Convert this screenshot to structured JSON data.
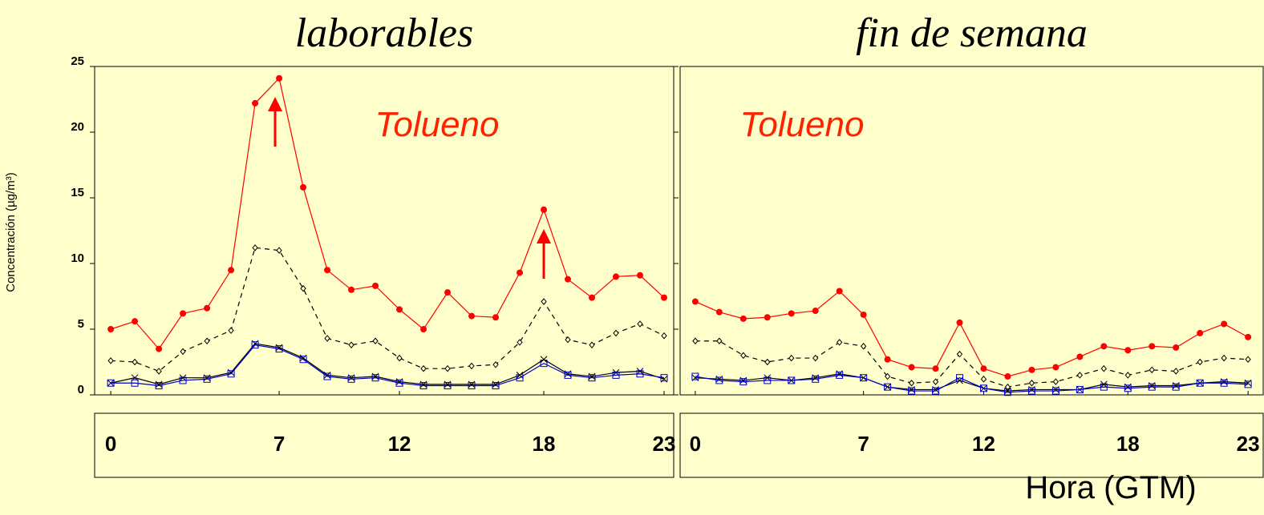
{
  "chart_data": [
    {
      "type": "line",
      "title": "laborables",
      "annotation": "Tolueno",
      "ylabel": "Concentración (µg/m³)",
      "x": [
        0,
        1,
        2,
        3,
        4,
        5,
        6,
        7,
        8,
        9,
        10,
        11,
        12,
        13,
        14,
        15,
        16,
        17,
        18,
        19,
        20,
        21,
        22,
        23
      ],
      "xlim": [
        -0.67,
        23.4
      ],
      "xticks": [
        0,
        7,
        12,
        18,
        23
      ],
      "ylim": [
        0,
        25
      ],
      "yticks": [
        0,
        5,
        10,
        15,
        20,
        25
      ],
      "series": [
        {
          "color": "#ff0000",
          "marker": "circle",
          "dash": false,
          "values": [
            5,
            5.6,
            3.5,
            6.2,
            6.6,
            9.5,
            22.2,
            24.1,
            15.8,
            9.5,
            8,
            8.3,
            6.5,
            5,
            7.8,
            6,
            5.9,
            9.3,
            14.1,
            8.8,
            7.4,
            9,
            9.1,
            7.4
          ]
        },
        {
          "color": "#000000",
          "marker": "diamond",
          "dash": true,
          "values": [
            2.6,
            2.5,
            1.8,
            3.3,
            4.1,
            4.9,
            11.2,
            11,
            8.1,
            4.3,
            3.8,
            4.1,
            2.8,
            2,
            2,
            2.2,
            2.3,
            4,
            7.1,
            4.2,
            3.8,
            4.7,
            5.4,
            4.5
          ]
        },
        {
          "color": "#000000",
          "marker": "cross",
          "dash": false,
          "values": [
            0.9,
            1.3,
            0.8,
            1.3,
            1.3,
            1.7,
            3.9,
            3.6,
            2.8,
            1.5,
            1.3,
            1.4,
            1,
            0.8,
            0.8,
            0.8,
            0.8,
            1.5,
            2.7,
            1.6,
            1.4,
            1.7,
            1.8,
            1.2
          ]
        },
        {
          "color": "#0000cc",
          "marker": "square",
          "dash": false,
          "values": [
            0.9,
            0.9,
            0.7,
            1.1,
            1.2,
            1.6,
            3.8,
            3.5,
            2.7,
            1.4,
            1.2,
            1.3,
            0.9,
            0.7,
            0.7,
            0.7,
            0.7,
            1.3,
            2.4,
            1.5,
            1.3,
            1.5,
            1.6,
            1.3
          ]
        }
      ]
    },
    {
      "type": "line",
      "title": "fin de semana",
      "annotation": "Tolueno",
      "xlabel": "Hora (GTM)",
      "x": [
        0,
        1,
        2,
        3,
        4,
        5,
        6,
        7,
        8,
        9,
        10,
        11,
        12,
        13,
        14,
        15,
        16,
        17,
        18,
        19,
        20,
        21,
        22,
        23
      ],
      "xlim": [
        -0.63,
        23.63
      ],
      "xticks": [
        0,
        7,
        12,
        18,
        23
      ],
      "ylim": [
        0,
        25
      ],
      "series": [
        {
          "color": "#ff0000",
          "marker": "circle",
          "dash": false,
          "values": [
            7.1,
            6.3,
            5.8,
            5.9,
            6.2,
            6.4,
            7.9,
            6.1,
            2.7,
            2.1,
            2,
            5.5,
            2,
            1.4,
            1.9,
            2.1,
            2.9,
            3.7,
            3.4,
            3.7,
            3.6,
            4.7,
            5.4,
            4.4
          ]
        },
        {
          "color": "#000000",
          "marker": "diamond",
          "dash": true,
          "values": [
            4.1,
            4.1,
            3,
            2.5,
            2.8,
            2.8,
            4,
            3.7,
            1.4,
            0.9,
            1,
            3.1,
            1.2,
            0.6,
            0.9,
            1,
            1.5,
            2,
            1.5,
            1.9,
            1.8,
            2.5,
            2.8,
            2.7
          ]
        },
        {
          "color": "#000000",
          "marker": "cross",
          "dash": false,
          "values": [
            1.3,
            1.2,
            1.1,
            1.3,
            1.1,
            1.3,
            1.6,
            1.3,
            0.6,
            0.4,
            0.4,
            1.1,
            0.5,
            0.3,
            0.4,
            0.4,
            0.4,
            0.8,
            0.6,
            0.7,
            0.7,
            0.9,
            1,
            0.9
          ]
        },
        {
          "color": "#0000cc",
          "marker": "square",
          "dash": false,
          "values": [
            1.4,
            1.1,
            1,
            1.1,
            1.1,
            1.2,
            1.5,
            1.3,
            0.6,
            0.3,
            0.3,
            1.3,
            0.5,
            0.2,
            0.3,
            0.3,
            0.4,
            0.6,
            0.5,
            0.6,
            0.6,
            0.9,
            0.9,
            0.8
          ]
        }
      ]
    }
  ]
}
